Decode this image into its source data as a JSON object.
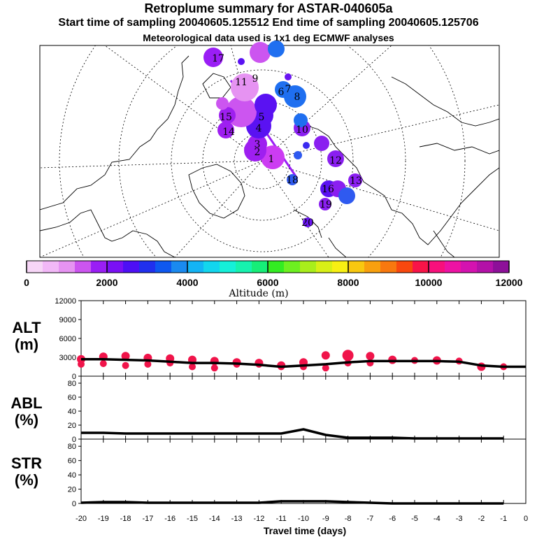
{
  "titles": {
    "line1": "Retroplume summary for ASTAR-040605a",
    "line2": "Start time of sampling 20040605.125512     End time of sampling 20040605.125706",
    "line3": "Meteorological data used is 1x1 deg ECMWF analyses"
  },
  "colorbar": {
    "label": "Altitude (m)",
    "ticks": [
      "0",
      "2000",
      "4000",
      "6000",
      "8000",
      "10000",
      "12000"
    ],
    "colors": [
      "#f7d6f7",
      "#f2b8f7",
      "#e693f2",
      "#cc55f0",
      "#9a1ef5",
      "#7a10f5",
      "#4d0ff5",
      "#2030ee",
      "#0e58f0",
      "#1a8af0",
      "#13b4f5",
      "#12d6ee",
      "#15f0d9",
      "#16f2ae",
      "#16ee78",
      "#33ec22",
      "#6df020",
      "#a9ee1b",
      "#d8f016",
      "#f8f013",
      "#f8c810",
      "#f8a00e",
      "#f8780e",
      "#f8480e",
      "#f81448",
      "#f8107c",
      "#ed12a4",
      "#d412b0",
      "#b311a8",
      "#8d1099"
    ]
  },
  "map_numbers": [
    {
      "id": "pt-1",
      "label": "1",
      "color": "#b21ff5"
    },
    {
      "id": "pt-2",
      "label": "2",
      "color": "#9e1ff0"
    },
    {
      "id": "pt-3",
      "label": "3",
      "color": "#9e1ff0"
    },
    {
      "id": "pt-4",
      "label": "4",
      "color": "#5a12f2"
    },
    {
      "id": "pt-5",
      "label": "5",
      "color": "#5a12f2"
    },
    {
      "id": "pt-6",
      "label": "6",
      "color": "#1f6ff0"
    },
    {
      "id": "pt-7",
      "label": "7",
      "color": "#1f6ff0"
    },
    {
      "id": "pt-8",
      "label": "8",
      "color": "#1f6ff0"
    },
    {
      "id": "pt-9",
      "label": "9",
      "color": "#cc3cf2"
    },
    {
      "id": "pt-10",
      "label": "10",
      "color": "#8a1ff0"
    },
    {
      "id": "pt-11",
      "label": "11",
      "color": "#cc3cf2"
    },
    {
      "id": "pt-12",
      "label": "12",
      "color": "#8a1ff0"
    },
    {
      "id": "pt-13",
      "label": "13",
      "color": "#8a1ff0"
    },
    {
      "id": "pt-14",
      "label": "14",
      "color": "#8a1ff0"
    },
    {
      "id": "pt-15",
      "label": "15",
      "color": "#8a1ff0"
    },
    {
      "id": "pt-16",
      "label": "16",
      "color": "#5a12f2"
    },
    {
      "id": "pt-17",
      "label": "17",
      "color": "#8a1ff0"
    },
    {
      "id": "pt-18",
      "label": "18",
      "color": "#2f5af0"
    },
    {
      "id": "pt-19",
      "label": "19",
      "color": "#3a2af0"
    },
    {
      "id": "pt-20",
      "label": "20",
      "color": "#6a15f2"
    }
  ],
  "panels": {
    "alt": {
      "label_line1": "ALT",
      "label_line2": "(m)"
    },
    "abl": {
      "label_line1": "ABL",
      "label_line2": "(%)"
    },
    "str": {
      "label_line1": "STR",
      "label_line2": "(%)"
    }
  },
  "xaxis_label": "Travel time (days)",
  "chart_data": [
    {
      "type": "line",
      "title": "ALT (m)",
      "xlabel": "Travel time (days)",
      "ylabel": "ALT (m)",
      "xlim": [
        -20,
        0
      ],
      "ylim": [
        0,
        12000
      ],
      "yticks": [
        0,
        3000,
        6000,
        9000,
        12000
      ],
      "xticks": [
        -20,
        -19,
        -18,
        -17,
        -16,
        -15,
        -14,
        -13,
        -12,
        -11,
        -10,
        -9,
        -8,
        -7,
        -6,
        -5,
        -4,
        -3,
        -2,
        -1,
        0
      ],
      "x": [
        -20,
        -19,
        -18,
        -17,
        -16,
        -15,
        -14,
        -13,
        -12,
        -11,
        -10,
        -9,
        -8,
        -7,
        -6,
        -5,
        -4,
        -3,
        -2,
        -1,
        0
      ],
      "values": [
        2700,
        2700,
        2600,
        2500,
        2300,
        2100,
        2100,
        2000,
        1800,
        1500,
        1700,
        1900,
        2200,
        2400,
        2400,
        2400,
        2400,
        2300,
        1700,
        1500,
        1500
      ],
      "clusters": [
        {
          "x": -20,
          "y": 2700
        },
        {
          "x": -20,
          "y": 1900
        },
        {
          "x": -19,
          "y": 3100
        },
        {
          "x": -19,
          "y": 2000
        },
        {
          "x": -18,
          "y": 3200
        },
        {
          "x": -18,
          "y": 1700
        },
        {
          "x": -17,
          "y": 2900
        },
        {
          "x": -17,
          "y": 1900
        },
        {
          "x": -16,
          "y": 2800
        },
        {
          "x": -16,
          "y": 2100
        },
        {
          "x": -15,
          "y": 2600
        },
        {
          "x": -15,
          "y": 1500
        },
        {
          "x": -14,
          "y": 2400
        },
        {
          "x": -14,
          "y": 1300
        },
        {
          "x": -13,
          "y": 2200
        },
        {
          "x": -13,
          "y": 1900
        },
        {
          "x": -12,
          "y": 2100
        },
        {
          "x": -12,
          "y": 1900
        },
        {
          "x": -11,
          "y": 1700
        },
        {
          "x": -11,
          "y": 1500
        },
        {
          "x": -10,
          "y": 2200
        },
        {
          "x": -10,
          "y": 1500
        },
        {
          "x": -9,
          "y": 3300
        },
        {
          "x": -9,
          "y": 1300
        },
        {
          "x": -8,
          "y": 3300
        },
        {
          "x": -8,
          "y": 2100
        },
        {
          "x": -7,
          "y": 3200
        },
        {
          "x": -7,
          "y": 2100
        },
        {
          "x": -6,
          "y": 2600
        },
        {
          "x": -5,
          "y": 2500
        },
        {
          "x": -4,
          "y": 2500
        },
        {
          "x": -3,
          "y": 2400
        },
        {
          "x": -2,
          "y": 1500
        },
        {
          "x": -1,
          "y": 1500
        }
      ]
    },
    {
      "type": "line",
      "title": "ABL (%)",
      "xlim": [
        -20,
        0
      ],
      "ylim": [
        0,
        90
      ],
      "yticks": [
        0,
        20,
        40,
        60,
        80
      ],
      "x": [
        -20,
        -19,
        -18,
        -17,
        -16,
        -15,
        -14,
        -13,
        -12,
        -11,
        -10,
        -9,
        -8,
        -7,
        -6,
        -5,
        -4,
        -3,
        -2,
        -1
      ],
      "values": [
        9,
        9,
        8,
        8,
        8,
        8,
        8,
        8,
        8,
        8,
        14,
        6,
        2,
        2,
        2,
        1,
        1,
        1,
        1,
        1
      ]
    },
    {
      "type": "line",
      "title": "STR (%)",
      "xlim": [
        -20,
        0
      ],
      "ylim": [
        0,
        90
      ],
      "yticks": [
        0,
        20,
        40,
        60,
        80
      ],
      "x": [
        -20,
        -19,
        -18,
        -17,
        -16,
        -15,
        -14,
        -13,
        -12,
        -11,
        -10,
        -9,
        -8,
        -7,
        -6,
        -5,
        -4,
        -3,
        -2,
        -1
      ],
      "values": [
        1,
        2,
        2,
        1,
        1,
        1,
        1,
        1,
        1,
        3,
        3,
        3,
        2,
        1,
        0,
        0,
        0,
        0,
        0,
        0
      ]
    }
  ]
}
